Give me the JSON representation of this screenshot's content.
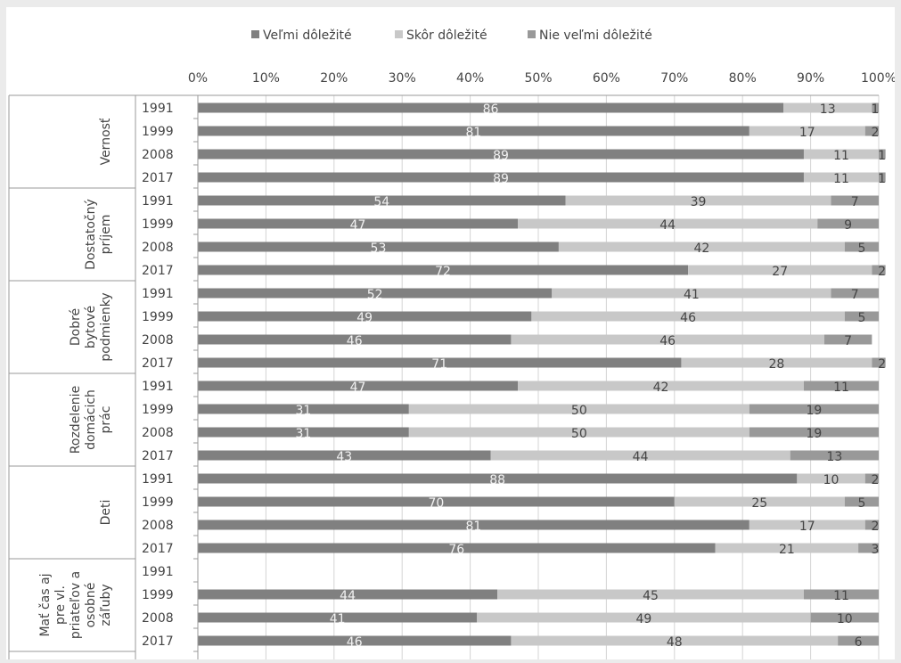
{
  "chart_data": {
    "type": "bar",
    "orientation": "horizontal",
    "stacked": "percent",
    "legend": [
      {
        "name": "Veľmi dôležité",
        "color": "#808080"
      },
      {
        "name": "Skôr dôležité",
        "color": "#c8c8c8"
      },
      {
        "name": "Nie veľmi dôležité",
        "color": "#999999"
      }
    ],
    "legend_position": "top",
    "x_ticks": [
      "0%",
      "10%",
      "20%",
      "30%",
      "40%",
      "50%",
      "60%",
      "70%",
      "80%",
      "90%",
      "100%"
    ],
    "xlim": [
      0,
      100
    ],
    "grid": true,
    "groups": [
      {
        "label_lines": [
          "Vernosť"
        ],
        "rows": [
          {
            "year": "1991",
            "values": [
              86,
              13,
              1
            ]
          },
          {
            "year": "1999",
            "values": [
              81,
              17,
              2
            ]
          },
          {
            "year": "2008",
            "values": [
              89,
              11,
              1
            ]
          },
          {
            "year": "2017",
            "values": [
              89,
              11,
              1
            ]
          }
        ]
      },
      {
        "label_lines": [
          "Dostatočný",
          "príjem"
        ],
        "rows": [
          {
            "year": "1991",
            "values": [
              54,
              39,
              7
            ]
          },
          {
            "year": "1999",
            "values": [
              47,
              44,
              9
            ]
          },
          {
            "year": "2008",
            "values": [
              53,
              42,
              5
            ]
          },
          {
            "year": "2017",
            "values": [
              72,
              27,
              2
            ]
          }
        ]
      },
      {
        "label_lines": [
          "Dobré",
          "bytové",
          "podmienky"
        ],
        "rows": [
          {
            "year": "1991",
            "values": [
              52,
              41,
              7
            ]
          },
          {
            "year": "1999",
            "values": [
              49,
              46,
              5
            ]
          },
          {
            "year": "2008",
            "values": [
              46,
              46,
              7
            ]
          },
          {
            "year": "2017",
            "values": [
              71,
              28,
              2
            ]
          }
        ]
      },
      {
        "label_lines": [
          "Rozdelenie",
          "domácich",
          "prác"
        ],
        "rows": [
          {
            "year": "1991",
            "values": [
              47,
              42,
              11
            ]
          },
          {
            "year": "1999",
            "values": [
              31,
              50,
              19
            ]
          },
          {
            "year": "2008",
            "values": [
              31,
              50,
              19
            ]
          },
          {
            "year": "2017",
            "values": [
              43,
              44,
              13
            ]
          }
        ]
      },
      {
        "label_lines": [
          "Deti"
        ],
        "rows": [
          {
            "year": "1991",
            "values": [
              88,
              10,
              2
            ]
          },
          {
            "year": "1999",
            "values": [
              70,
              25,
              5
            ]
          },
          {
            "year": "2008",
            "values": [
              81,
              17,
              2
            ]
          },
          {
            "year": "2017",
            "values": [
              76,
              21,
              3
            ]
          }
        ]
      },
      {
        "label_lines": [
          "Mať čas aj",
          "pre vl.",
          "priateľov a",
          "osobné",
          "záľuby"
        ],
        "rows": [
          {
            "year": "1991",
            "values": null
          },
          {
            "year": "1999",
            "values": [
              44,
              45,
              11
            ]
          },
          {
            "year": "2008",
            "values": [
              41,
              49,
              10
            ]
          },
          {
            "year": "2017",
            "values": [
              46,
              48,
              6
            ]
          }
        ]
      }
    ]
  }
}
